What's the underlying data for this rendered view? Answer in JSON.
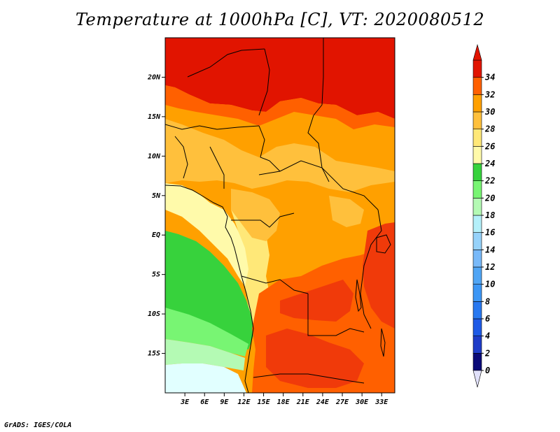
{
  "title": "Temperature at 1000hPa [C], VT: 2020080512",
  "footer": "GrADS: IGES/COLA",
  "map": {
    "lon_range": [
      0,
      35
    ],
    "lat_range": [
      -20,
      25
    ],
    "lat_ticks": [
      "20N",
      "15N",
      "10N",
      "5N",
      "EQ",
      "5S",
      "10S",
      "15S"
    ],
    "lat_tick_values": [
      20,
      15,
      10,
      5,
      0,
      -5,
      -10,
      -15
    ],
    "lon_ticks": [
      "3E",
      "6E",
      "9E",
      "12E",
      "15E",
      "18E",
      "21E",
      "24E",
      "27E",
      "30E",
      "33E"
    ],
    "lon_tick_values": [
      3,
      6,
      9,
      12,
      15,
      18,
      21,
      24,
      27,
      30,
      33
    ]
  },
  "colorbar": {
    "labels": [
      "0",
      "2",
      "4",
      "6",
      "8",
      "10",
      "12",
      "14",
      "16",
      "18",
      "20",
      "22",
      "24",
      "26",
      "28",
      "30",
      "32",
      "34"
    ],
    "colors": [
      "#0a0a78",
      "#1e3cc8",
      "#1e5ae6",
      "#2878f0",
      "#3c96f5",
      "#50a5f5",
      "#78b9f9",
      "#96d2fa",
      "#b4f0fa",
      "#b4fab4",
      "#78f573",
      "#37d23c",
      "#fffaaa",
      "#ffe878",
      "#ffc03c",
      "#ffa000",
      "#ff6000",
      "#e11400"
    ],
    "under_color": "#e1e1fa",
    "over_color": "#e11400"
  },
  "colors": {
    "hot": "#e11400",
    "red_orange": "#f03a0a",
    "orange_red": "#ff6000",
    "orange": "#ffa000",
    "light_orange": "#ffc03c",
    "yellow": "#ffe878",
    "pale_yellow": "#fffaaa",
    "green_dark": "#37d23c",
    "green": "#78f573",
    "green_light": "#b4fab4",
    "cyan_light": "#e1ffff"
  }
}
